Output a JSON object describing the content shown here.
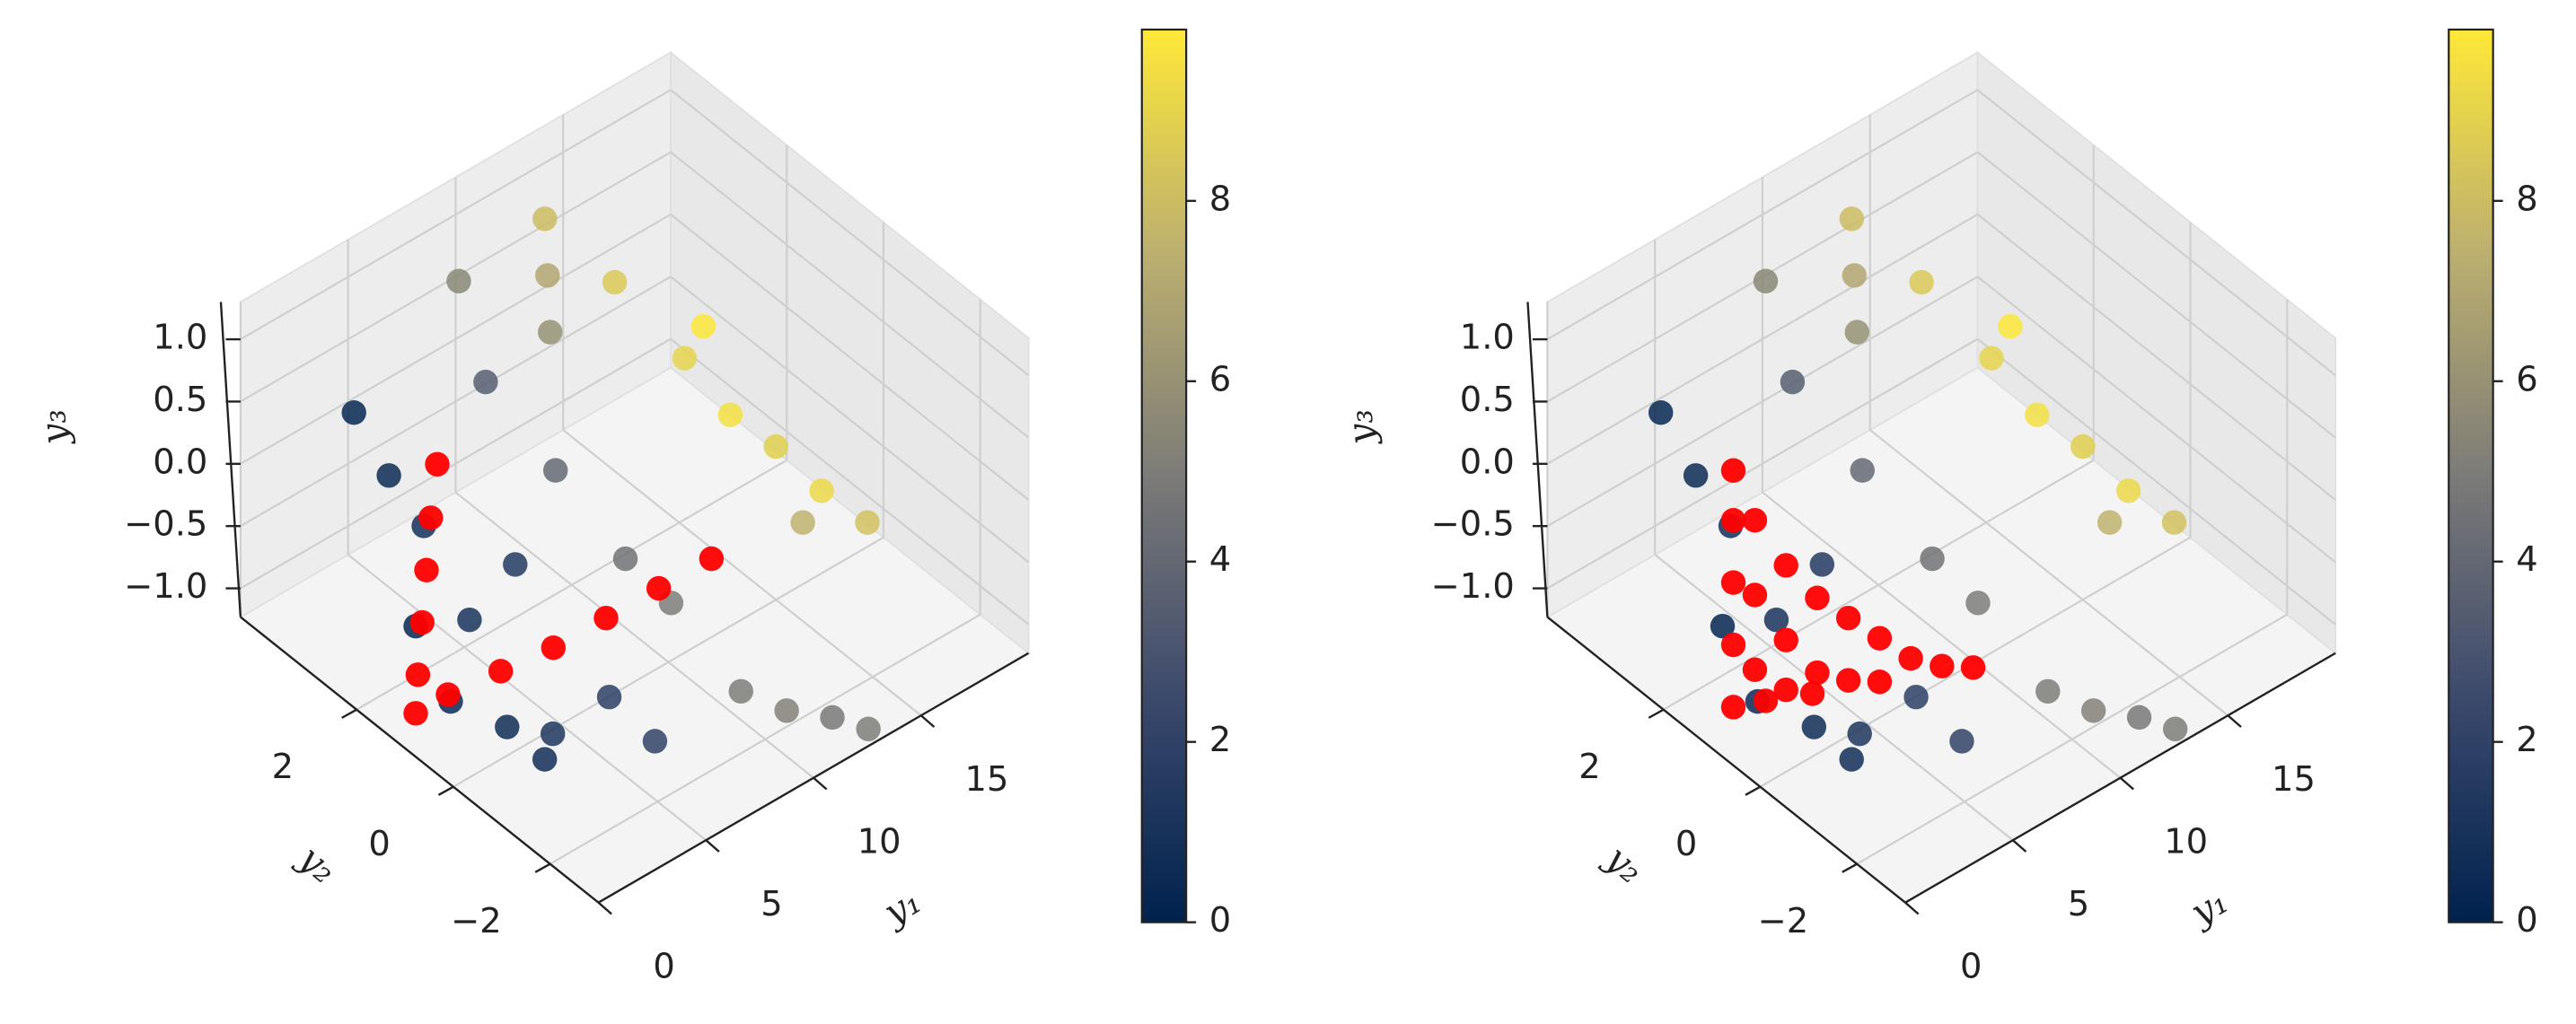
{
  "chart_data": [
    {
      "type": "scatter3d",
      "xlabel": "y₁",
      "ylabel": "y₂",
      "zlabel": "y₃",
      "xlim": [
        0,
        20
      ],
      "ylim": [
        -3,
        4.4
      ],
      "zlim": [
        -1.23,
        1.3
      ],
      "xticks": [
        0,
        5,
        10,
        15
      ],
      "yticks": [
        {
          "value": -2,
          "label": "−2"
        },
        0,
        2
      ],
      "zticks": [
        {
          "value": -1,
          "label": "−1.0"
        },
        {
          "value": -0.5,
          "label": "−0.5"
        },
        {
          "value": 0,
          "label": "0.0"
        },
        {
          "value": 0.5,
          "label": "0.5"
        },
        {
          "value": 1,
          "label": "1.0"
        }
      ],
      "grid": true,
      "colorbar": {
        "colormap": "cividis",
        "clim": [
          0,
          9.9
        ],
        "ticks": [
          0,
          2,
          4,
          6,
          8
        ]
      },
      "series": [
        {
          "x": [
            1,
            1.5,
            2,
            0.5,
            1,
            2.5,
            3,
            3.5,
            2,
            4,
            5,
            6,
            6,
            7,
            8,
            9,
            10,
            11,
            7,
            9,
            12,
            13,
            12,
            13,
            14,
            15,
            16,
            15,
            11,
            14,
            17,
            10
          ],
          "y": [
            2.5,
            2,
            1.5,
            1,
            0.5,
            0,
            1,
            -0.5,
            -1,
            0.5,
            -1,
            -1.5,
            2,
            1,
            0,
            -0.5,
            -1.5,
            -2,
            3,
            2,
            -2.5,
            -2.8,
            2,
            1,
            0.5,
            0,
            -0.5,
            1.5,
            3,
            -1,
            -1,
            2.5
          ],
          "z": [
            0.9,
            0.5,
            0.2,
            -0.3,
            -0.8,
            -1,
            -0.5,
            -1,
            -0.9,
            0,
            -0.7,
            -1,
            0.8,
            0.3,
            -0.2,
            -0.5,
            -1,
            -1.1,
            1.2,
            0.9,
            -1.1,
            -1.2,
            1,
            0.6,
            0.2,
            0,
            -0.3,
            0.5,
            1.3,
            -0.2,
            -0.5,
            1.1
          ],
          "c": [
            0.3,
            0.5,
            0.8,
            0.2,
            0.4,
            0.6,
            1,
            1.2,
            0.7,
            1.5,
            1.8,
            2,
            3.5,
            4,
            4.5,
            5,
            5,
            5.2,
            5.5,
            6,
            4.8,
            5,
            8.5,
            9,
            9.5,
            8.8,
            9.2,
            9.8,
            8,
            7.5,
            8.2,
            7
          ]
        },
        {
          "color": "#ff0000",
          "x": [
            1.5,
            1.2,
            1,
            0.8,
            0.6,
            0.5,
            2,
            4,
            6,
            8,
            10,
            12
          ],
          "y": [
            1,
            1,
            1,
            1,
            1,
            1,
            1,
            0.8,
            0.6,
            0.4,
            0.2,
            0
          ],
          "z": [
            0.9,
            0.5,
            0.1,
            -0.3,
            -0.7,
            -1,
            -1,
            -0.95,
            -0.9,
            -0.8,
            -0.7,
            -0.6
          ]
        }
      ]
    },
    {
      "type": "scatter3d",
      "xlabel": "y₁",
      "ylabel": "y₂",
      "zlabel": "y₃",
      "xlim": [
        0,
        20
      ],
      "ylim": [
        -3,
        4.4
      ],
      "zlim": [
        -1.23,
        1.3
      ],
      "xticks": [
        0,
        5,
        10,
        15
      ],
      "yticks": [
        {
          "value": -2,
          "label": "−2"
        },
        0,
        2
      ],
      "zticks": [
        {
          "value": -1,
          "label": "−1.0"
        },
        {
          "value": -0.5,
          "label": "−0.5"
        },
        {
          "value": 0,
          "label": "0.0"
        },
        {
          "value": 0.5,
          "label": "0.5"
        },
        {
          "value": 1,
          "label": "1.0"
        }
      ],
      "grid": true,
      "colorbar": {
        "colormap": "cividis",
        "clim": [
          0,
          9.9
        ],
        "ticks": [
          0,
          2,
          4,
          6,
          8
        ]
      },
      "series": [
        {
          "x": [
            1,
            1.5,
            2,
            0.5,
            1,
            2.5,
            3,
            3.5,
            2,
            4,
            5,
            6,
            6,
            7,
            8,
            9,
            10,
            11,
            7,
            9,
            12,
            13,
            12,
            13,
            14,
            15,
            16,
            15,
            11,
            14,
            17,
            10
          ],
          "y": [
            2.5,
            2,
            1.5,
            1,
            0.5,
            0,
            1,
            -0.5,
            -1,
            0.5,
            -1,
            -1.5,
            2,
            1,
            0,
            -0.5,
            -1.5,
            -2,
            3,
            2,
            -2.5,
            -2.8,
            2,
            1,
            0.5,
            0,
            -0.5,
            1.5,
            3,
            -1,
            -1,
            2.5
          ],
          "z": [
            0.9,
            0.5,
            0.2,
            -0.3,
            -0.8,
            -1,
            -0.5,
            -1,
            -0.9,
            0,
            -0.7,
            -1,
            0.8,
            0.3,
            -0.2,
            -0.5,
            -1,
            -1.1,
            1.2,
            0.9,
            -1.1,
            -1.2,
            1,
            0.6,
            0.2,
            0,
            -0.3,
            0.5,
            1.3,
            -0.2,
            -0.5,
            1.1
          ],
          "c": [
            0.3,
            0.5,
            0.8,
            0.2,
            0.4,
            0.6,
            1,
            1.2,
            0.7,
            1.5,
            1.8,
            2,
            3.5,
            4,
            4.5,
            5,
            5,
            5.2,
            5.5,
            6,
            4.8,
            5,
            8.5,
            9,
            9.5,
            8.8,
            9.2,
            9.8,
            8,
            7.5,
            8.2,
            7
          ]
        },
        {
          "color": "#ff0000",
          "x": [
            1,
            1,
            1,
            1,
            1,
            2,
            2,
            2,
            3,
            3,
            3,
            4,
            4,
            5,
            5,
            6,
            6,
            7,
            8,
            9,
            2.5,
            4
          ],
          "y": [
            1,
            1,
            1,
            1,
            1,
            1,
            1,
            1,
            0.8,
            0.8,
            0.8,
            0.6,
            0.6,
            0.4,
            0.4,
            0.2,
            0.2,
            0,
            -0.2,
            -0.4,
            1,
            0.7
          ],
          "z": [
            0.9,
            0.5,
            0,
            -0.5,
            -1,
            0.4,
            -0.2,
            -0.8,
            0,
            -0.6,
            -1,
            -0.3,
            -0.9,
            -0.5,
            -1,
            -0.7,
            -1.05,
            -0.9,
            -1,
            -1.05,
            -1.1,
            -1.1
          ]
        }
      ]
    }
  ]
}
